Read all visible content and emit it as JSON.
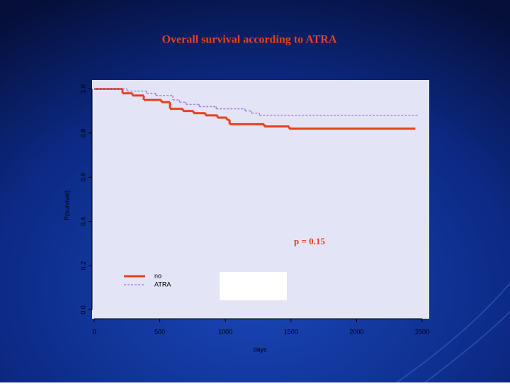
{
  "chart_data": {
    "type": "step",
    "title": "Overall survival according to ATRA",
    "xlabel": "days",
    "ylabel": "P(survival)",
    "annotation": "p = 0.15",
    "xlim": [
      -16,
      2554
    ],
    "ylim": [
      -0.04,
      1.04
    ],
    "xticks": [
      0,
      500,
      1000,
      1500,
      2000,
      2500
    ],
    "yticks": [
      {
        "value": 0,
        "label": "0.0"
      },
      0.2,
      0.4,
      0.6,
      0.8,
      {
        "value": 1,
        "label": "1.0"
      }
    ],
    "series": [
      {
        "name": "no",
        "color": "#e8401c",
        "dashed": false,
        "x": [
          0,
          216,
          292,
          378,
          513,
          578,
          676,
          757,
          849,
          940,
          1011,
          1032,
          1297,
          1486,
          2443
        ],
        "values": [
          1.0,
          0.98,
          0.97,
          0.95,
          0.94,
          0.91,
          0.9,
          0.89,
          0.88,
          0.87,
          0.86,
          0.84,
          0.83,
          0.82,
          0.82
        ]
      },
      {
        "name": "ATRA",
        "color": "#a58ad6",
        "dashed": true,
        "x": [
          0,
          250,
          400,
          470,
          600,
          650,
          700,
          800,
          930,
          1150,
          1200,
          1260,
          2459
        ],
        "values": [
          1.0,
          0.99,
          0.98,
          0.97,
          0.95,
          0.94,
          0.93,
          0.92,
          0.91,
          0.9,
          0.89,
          0.88,
          0.88
        ]
      }
    ]
  }
}
